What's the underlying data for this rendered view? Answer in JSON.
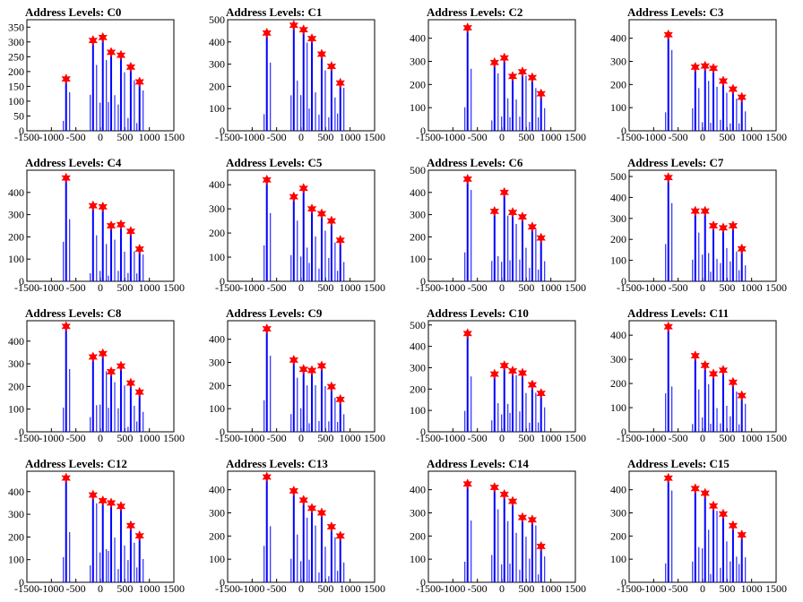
{
  "page": {
    "background": "#ffffff"
  },
  "chart_data": [
    {
      "title": "Address Levels: C0",
      "type": "bar",
      "xlim": [
        -1500,
        1500
      ],
      "ylim": [
        0,
        375
      ],
      "yticks": [
        0,
        50,
        100,
        150,
        200,
        250,
        300,
        350
      ],
      "xticks": [
        -1500,
        -1000,
        -500,
        0,
        500,
        1000,
        1500
      ],
      "peaks": [
        {
          "x": -700,
          "y": 175
        },
        {
          "x": -150,
          "y": 305
        },
        {
          "x": 50,
          "y": 315
        },
        {
          "x": 220,
          "y": 265
        },
        {
          "x": 420,
          "y": 255
        },
        {
          "x": 620,
          "y": 215
        },
        {
          "x": 800,
          "y": 165
        }
      ],
      "bar_color": "#0000ff",
      "marker_color": "#ff0000"
    },
    {
      "title": "Address Levels: C1",
      "type": "bar",
      "xlim": [
        -1500,
        1500
      ],
      "ylim": [
        0,
        500
      ],
      "yticks": [
        0,
        100,
        200,
        300,
        400,
        500
      ],
      "xticks": [
        -1500,
        -1000,
        -500,
        0,
        500,
        1000,
        1500
      ],
      "peaks": [
        {
          "x": -700,
          "y": 440
        },
        {
          "x": -150,
          "y": 475
        },
        {
          "x": 50,
          "y": 455
        },
        {
          "x": 220,
          "y": 415
        },
        {
          "x": 420,
          "y": 345
        },
        {
          "x": 620,
          "y": 290
        },
        {
          "x": 800,
          "y": 215
        }
      ],
      "bar_color": "#0000ff",
      "marker_color": "#ff0000"
    },
    {
      "title": "Address Levels: C2",
      "type": "bar",
      "xlim": [
        -1500,
        1500
      ],
      "ylim": [
        0,
        480
      ],
      "yticks": [
        0,
        100,
        200,
        300,
        400
      ],
      "xticks": [
        -1500,
        -1000,
        -500,
        0,
        500,
        1000,
        1500
      ],
      "peaks": [
        {
          "x": -700,
          "y": 445
        },
        {
          "x": -150,
          "y": 295
        },
        {
          "x": 50,
          "y": 315
        },
        {
          "x": 220,
          "y": 235
        },
        {
          "x": 420,
          "y": 255
        },
        {
          "x": 620,
          "y": 230
        },
        {
          "x": 800,
          "y": 160
        }
      ],
      "bar_color": "#0000ff",
      "marker_color": "#ff0000"
    },
    {
      "title": "Address Levels: C3",
      "type": "bar",
      "xlim": [
        -1500,
        1500
      ],
      "ylim": [
        0,
        480
      ],
      "yticks": [
        0,
        100,
        200,
        300,
        400
      ],
      "xticks": [
        -1500,
        -1000,
        -500,
        0,
        500,
        1000,
        1500
      ],
      "peaks": [
        {
          "x": -700,
          "y": 415
        },
        {
          "x": -150,
          "y": 275
        },
        {
          "x": 50,
          "y": 280
        },
        {
          "x": 220,
          "y": 270
        },
        {
          "x": 420,
          "y": 215
        },
        {
          "x": 620,
          "y": 180
        },
        {
          "x": 800,
          "y": 145
        }
      ],
      "bar_color": "#0000ff",
      "marker_color": "#ff0000"
    },
    {
      "title": "Address Levels: C4",
      "type": "bar",
      "xlim": [
        -1500,
        1500
      ],
      "ylim": [
        0,
        500
      ],
      "yticks": [
        0,
        100,
        200,
        300,
        400
      ],
      "xticks": [
        -1500,
        -1000,
        -500,
        0,
        500,
        1000,
        1500
      ],
      "peaks": [
        {
          "x": -700,
          "y": 465
        },
        {
          "x": -150,
          "y": 340
        },
        {
          "x": 50,
          "y": 335
        },
        {
          "x": 220,
          "y": 250
        },
        {
          "x": 420,
          "y": 255
        },
        {
          "x": 620,
          "y": 225
        },
        {
          "x": 800,
          "y": 145
        }
      ],
      "bar_color": "#0000ff",
      "marker_color": "#ff0000"
    },
    {
      "title": "Address Levels: C5",
      "type": "bar",
      "xlim": [
        -1500,
        1500
      ],
      "ylim": [
        0,
        460
      ],
      "yticks": [
        0,
        100,
        200,
        300,
        400
      ],
      "xticks": [
        -1500,
        -1000,
        -500,
        0,
        500,
        1000,
        1500
      ],
      "peaks": [
        {
          "x": -700,
          "y": 420
        },
        {
          "x": -150,
          "y": 350
        },
        {
          "x": 50,
          "y": 385
        },
        {
          "x": 220,
          "y": 300
        },
        {
          "x": 420,
          "y": 280
        },
        {
          "x": 620,
          "y": 250
        },
        {
          "x": 800,
          "y": 170
        }
      ],
      "bar_color": "#0000ff",
      "marker_color": "#ff0000"
    },
    {
      "title": "Address Levels: C6",
      "type": "bar",
      "xlim": [
        -1500,
        1500
      ],
      "ylim": [
        0,
        500
      ],
      "yticks": [
        0,
        100,
        200,
        300,
        400,
        500
      ],
      "xticks": [
        -1500,
        -1000,
        -500,
        0,
        500,
        1000,
        1500
      ],
      "peaks": [
        {
          "x": -700,
          "y": 460
        },
        {
          "x": -150,
          "y": 315
        },
        {
          "x": 50,
          "y": 400
        },
        {
          "x": 220,
          "y": 310
        },
        {
          "x": 420,
          "y": 290
        },
        {
          "x": 620,
          "y": 245
        },
        {
          "x": 800,
          "y": 195
        }
      ],
      "bar_color": "#0000ff",
      "marker_color": "#ff0000"
    },
    {
      "title": "Address Levels: C7",
      "type": "bar",
      "xlim": [
        -1500,
        1500
      ],
      "ylim": [
        0,
        530
      ],
      "yticks": [
        0,
        100,
        200,
        300,
        400,
        500
      ],
      "xticks": [
        -1500,
        -1000,
        -500,
        0,
        500,
        1000,
        1500
      ],
      "peaks": [
        {
          "x": -700,
          "y": 495
        },
        {
          "x": -150,
          "y": 335
        },
        {
          "x": 50,
          "y": 335
        },
        {
          "x": 220,
          "y": 265
        },
        {
          "x": 420,
          "y": 255
        },
        {
          "x": 620,
          "y": 265
        },
        {
          "x": 800,
          "y": 155
        }
      ],
      "bar_color": "#0000ff",
      "marker_color": "#ff0000"
    },
    {
      "title": "Address Levels: C8",
      "type": "bar",
      "xlim": [
        -1500,
        1500
      ],
      "ylim": [
        0,
        490
      ],
      "yticks": [
        0,
        100,
        200,
        300,
        400
      ],
      "xticks": [
        -1500,
        -1000,
        -500,
        0,
        500,
        1000,
        1500
      ],
      "peaks": [
        {
          "x": -700,
          "y": 465
        },
        {
          "x": -150,
          "y": 330
        },
        {
          "x": 50,
          "y": 345
        },
        {
          "x": 220,
          "y": 265
        },
        {
          "x": 420,
          "y": 290
        },
        {
          "x": 620,
          "y": 215
        },
        {
          "x": 800,
          "y": 175
        }
      ],
      "bar_color": "#0000ff",
      "marker_color": "#ff0000"
    },
    {
      "title": "Address Levels: C9",
      "type": "bar",
      "xlim": [
        -1500,
        1500
      ],
      "ylim": [
        0,
        480
      ],
      "yticks": [
        0,
        100,
        200,
        300,
        400
      ],
      "xticks": [
        -1500,
        -1000,
        -500,
        0,
        500,
        1000,
        1500
      ],
      "peaks": [
        {
          "x": -700,
          "y": 445
        },
        {
          "x": -150,
          "y": 310
        },
        {
          "x": 50,
          "y": 270
        },
        {
          "x": 220,
          "y": 265
        },
        {
          "x": 420,
          "y": 285
        },
        {
          "x": 620,
          "y": 195
        },
        {
          "x": 800,
          "y": 140
        }
      ],
      "bar_color": "#0000ff",
      "marker_color": "#ff0000"
    },
    {
      "title": "Address Levels: C10",
      "type": "bar",
      "xlim": [
        -1500,
        1500
      ],
      "ylim": [
        0,
        520
      ],
      "yticks": [
        0,
        100,
        200,
        300,
        400,
        500
      ],
      "xticks": [
        -1500,
        -1000,
        -500,
        0,
        500,
        1000,
        1500
      ],
      "peaks": [
        {
          "x": -700,
          "y": 460
        },
        {
          "x": -150,
          "y": 270
        },
        {
          "x": 50,
          "y": 310
        },
        {
          "x": 220,
          "y": 285
        },
        {
          "x": 420,
          "y": 275
        },
        {
          "x": 620,
          "y": 220
        },
        {
          "x": 800,
          "y": 180
        }
      ],
      "bar_color": "#0000ff",
      "marker_color": "#ff0000"
    },
    {
      "title": "Address Levels: C11",
      "type": "bar",
      "xlim": [
        -1500,
        1500
      ],
      "ylim": [
        0,
        460
      ],
      "yticks": [
        0,
        100,
        200,
        300,
        400
      ],
      "xticks": [
        -1500,
        -1000,
        -500,
        0,
        500,
        1000,
        1500
      ],
      "peaks": [
        {
          "x": -700,
          "y": 435
        },
        {
          "x": -150,
          "y": 315
        },
        {
          "x": 50,
          "y": 275
        },
        {
          "x": 220,
          "y": 240
        },
        {
          "x": 420,
          "y": 255
        },
        {
          "x": 620,
          "y": 205
        },
        {
          "x": 800,
          "y": 150
        }
      ],
      "bar_color": "#0000ff",
      "marker_color": "#ff0000"
    },
    {
      "title": "Address Levels: C12",
      "type": "bar",
      "xlim": [
        -1500,
        1500
      ],
      "ylim": [
        0,
        490
      ],
      "yticks": [
        0,
        100,
        200,
        300,
        400
      ],
      "xticks": [
        -1500,
        -1000,
        -500,
        0,
        500,
        1000,
        1500
      ],
      "peaks": [
        {
          "x": -700,
          "y": 460
        },
        {
          "x": -150,
          "y": 385
        },
        {
          "x": 50,
          "y": 360
        },
        {
          "x": 220,
          "y": 350
        },
        {
          "x": 420,
          "y": 335
        },
        {
          "x": 620,
          "y": 250
        },
        {
          "x": 800,
          "y": 205
        }
      ],
      "bar_color": "#0000ff",
      "marker_color": "#ff0000"
    },
    {
      "title": "Address Levels: C13",
      "type": "bar",
      "xlim": [
        -1500,
        1500
      ],
      "ylim": [
        0,
        480
      ],
      "yticks": [
        0,
        100,
        200,
        300,
        400
      ],
      "xticks": [
        -1500,
        -1000,
        -500,
        0,
        500,
        1000,
        1500
      ],
      "peaks": [
        {
          "x": -700,
          "y": 455
        },
        {
          "x": -150,
          "y": 395
        },
        {
          "x": 50,
          "y": 355
        },
        {
          "x": 220,
          "y": 320
        },
        {
          "x": 420,
          "y": 300
        },
        {
          "x": 620,
          "y": 240
        },
        {
          "x": 800,
          "y": 200
        }
      ],
      "bar_color": "#0000ff",
      "marker_color": "#ff0000"
    },
    {
      "title": "Address Levels: C14",
      "type": "bar",
      "xlim": [
        -1500,
        1500
      ],
      "ylim": [
        0,
        480
      ],
      "yticks": [
        0,
        100,
        200,
        300,
        400
      ],
      "xticks": [
        -1500,
        -1000,
        -500,
        0,
        500,
        1000,
        1500
      ],
      "peaks": [
        {
          "x": -700,
          "y": 425
        },
        {
          "x": -150,
          "y": 410
        },
        {
          "x": 50,
          "y": 380
        },
        {
          "x": 220,
          "y": 350
        },
        {
          "x": 420,
          "y": 280
        },
        {
          "x": 620,
          "y": 270
        },
        {
          "x": 800,
          "y": 155
        }
      ],
      "bar_color": "#0000ff",
      "marker_color": "#ff0000"
    },
    {
      "title": "Address Levels: C15",
      "type": "bar",
      "xlim": [
        -1500,
        1500
      ],
      "ylim": [
        0,
        480
      ],
      "yticks": [
        0,
        100,
        200,
        300,
        400
      ],
      "xticks": [
        -1500,
        -1000,
        -500,
        0,
        500,
        1000,
        1500
      ],
      "peaks": [
        {
          "x": -700,
          "y": 450
        },
        {
          "x": -150,
          "y": 405
        },
        {
          "x": 50,
          "y": 385
        },
        {
          "x": 220,
          "y": 330
        },
        {
          "x": 420,
          "y": 295
        },
        {
          "x": 620,
          "y": 245
        },
        {
          "x": 800,
          "y": 205
        }
      ],
      "bar_color": "#0000ff",
      "marker_color": "#ff0000"
    }
  ]
}
